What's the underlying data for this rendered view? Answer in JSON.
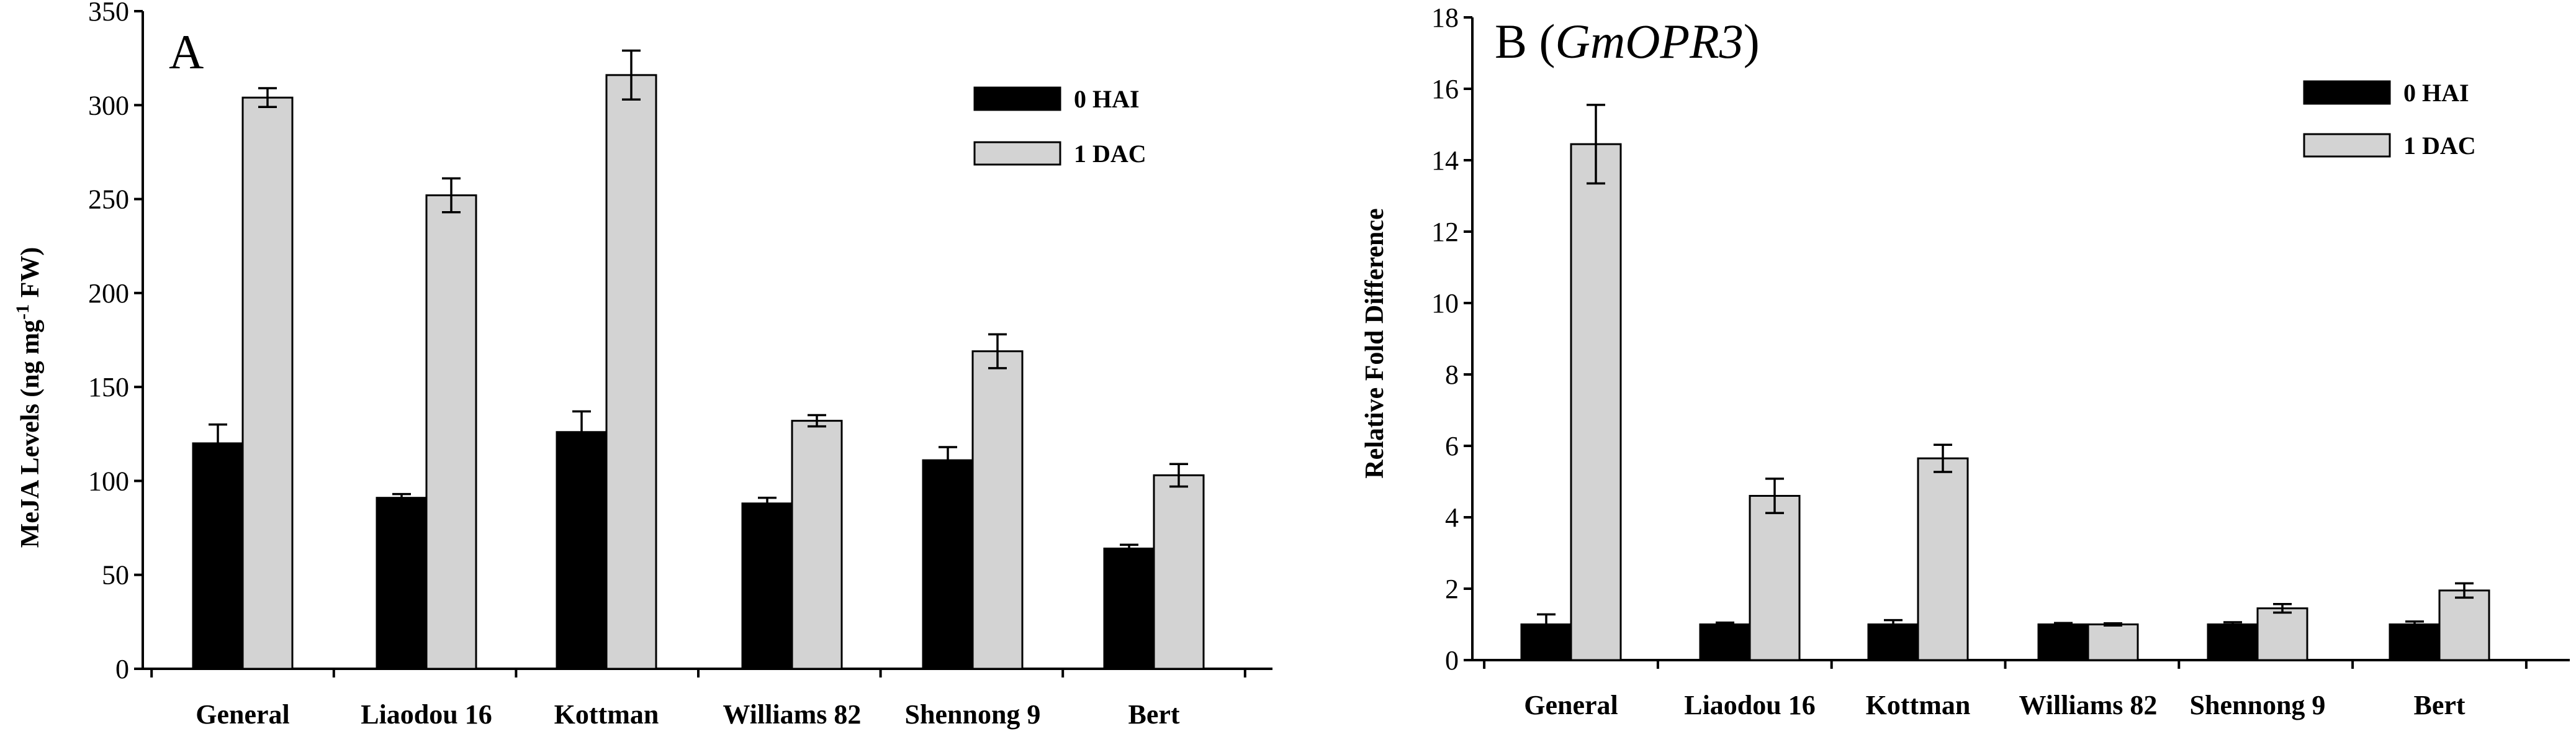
{
  "colors": {
    "hai0": "#000000",
    "dac1": "#d3d3d3"
  },
  "chart_data": [
    {
      "type": "bar",
      "panel_label": "A",
      "panel_gene": "",
      "categories": [
        "General",
        "Liaodou 16",
        "Kottman",
        "Williams 82",
        "Shennong 9",
        "Bert"
      ],
      "series": [
        {
          "name": "0 HAI",
          "values": [
            120,
            91,
            126,
            88,
            111,
            64
          ],
          "errors": [
            10,
            2,
            11,
            3,
            7,
            2
          ]
        },
        {
          "name": "1 DAC",
          "values": [
            304,
            252,
            316,
            132,
            169,
            103
          ],
          "errors": [
            5,
            9,
            13,
            3,
            9,
            6
          ]
        }
      ],
      "ylabel": "MeJA Levels (ng mg",
      "ylabel_sup": "-1",
      "ylabel_tail": " FW)",
      "ylim": [
        0,
        350
      ],
      "yticks": [
        0,
        50,
        100,
        150,
        200,
        250,
        300,
        350
      ],
      "xlabel": ""
    },
    {
      "type": "bar",
      "panel_label": "B (",
      "panel_gene": "GmOPR3",
      "panel_close": ")",
      "categories": [
        "General",
        "Liaodou 16",
        "Kottman",
        "Williams 82",
        "Shennong 9",
        "Bert"
      ],
      "series": [
        {
          "name": "0 HAI",
          "values": [
            1.0,
            1.0,
            1.0,
            1.0,
            1.0,
            1.0
          ],
          "errors": [
            0.28,
            0.05,
            0.12,
            0.04,
            0.06,
            0.08
          ]
        },
        {
          "name": "1 DAC",
          "values": [
            14.45,
            4.6,
            5.65,
            1.0,
            1.45,
            1.95
          ],
          "errors": [
            1.1,
            0.48,
            0.38,
            0.03,
            0.12,
            0.2
          ]
        }
      ],
      "ylabel": "Relative  Fold  Difference",
      "ylim": [
        0,
        18
      ],
      "yticks": [
        0,
        2,
        4,
        6,
        8,
        10,
        12,
        14,
        16,
        18
      ],
      "xlabel": ""
    }
  ]
}
